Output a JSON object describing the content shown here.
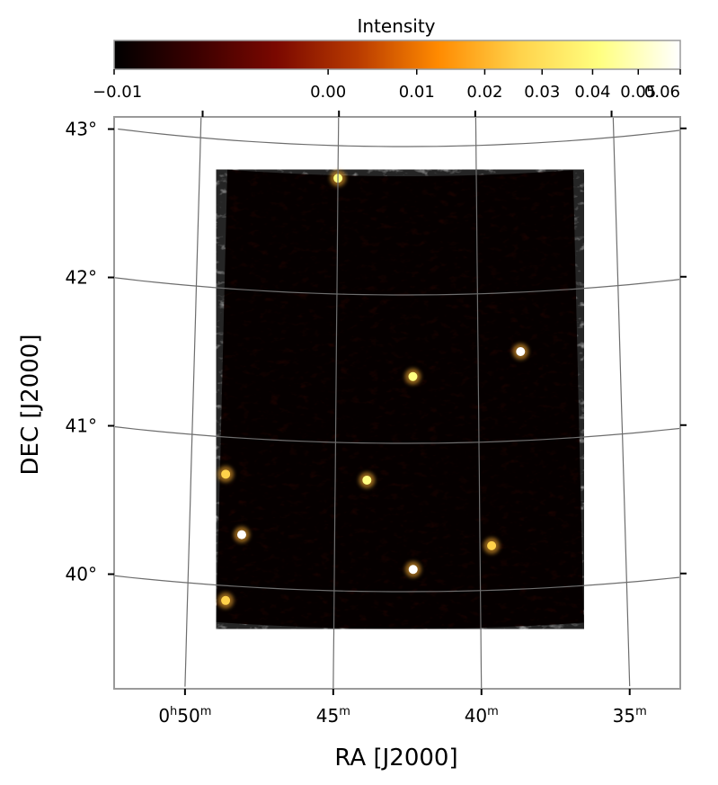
{
  "chart_data": {
    "type": "heatmap",
    "title": "",
    "xlabel": "RA [J2000]",
    "ylabel": "DEC [J2000]",
    "colorbar": {
      "label": "Intensity",
      "scale": "nonlinear (stretched)",
      "range": [
        -0.01,
        0.06
      ],
      "ticks": [
        {
          "value": -0.01,
          "label": "−0.01"
        },
        {
          "value": 0.0,
          "label": "0.00"
        },
        {
          "value": 0.01,
          "label": "0.01"
        },
        {
          "value": 0.02,
          "label": "0.02"
        },
        {
          "value": 0.03,
          "label": "0.03"
        },
        {
          "value": 0.04,
          "label": "0.04"
        },
        {
          "value": 0.05,
          "label": "0.05"
        },
        {
          "value": 0.06,
          "label": "0.06"
        }
      ],
      "colormap": [
        "#000000",
        "#3a0000",
        "#7a0800",
        "#b83a00",
        "#ff8a00",
        "#ffd24a",
        "#ffff80",
        "#ffffff"
      ]
    },
    "x_ticks": [
      {
        "label": "0h50m",
        "hours": 0,
        "minutes": 50
      },
      {
        "label": "45m",
        "minutes": 45
      },
      {
        "label": "40m",
        "minutes": 40
      },
      {
        "label": "35m",
        "minutes": 35
      }
    ],
    "y_ticks": [
      {
        "label": "43°",
        "deg": 43
      },
      {
        "label": "42°",
        "deg": 42
      },
      {
        "label": "41°",
        "deg": 41
      },
      {
        "label": "40°",
        "deg": 40
      }
    ],
    "grid": true,
    "grid_color": "#6e6e6e",
    "map_extent": {
      "ra_min": 36.5,
      "ra_max": 49.0,
      "dec_min": 39.75,
      "dec_max": 42.8
    },
    "bright_sources": [
      {
        "ra": 38.5,
        "dec": 41.6,
        "intensity": 0.06
      },
      {
        "ra": 42.3,
        "dec": 41.45,
        "intensity": 0.04
      },
      {
        "ra": 43.9,
        "dec": 40.75,
        "intensity": 0.035
      },
      {
        "ra": 48.2,
        "dec": 40.35,
        "intensity": 0.06
      },
      {
        "ra": 42.3,
        "dec": 40.15,
        "intensity": 0.06
      },
      {
        "ra": 48.8,
        "dec": 40.75,
        "intensity": 0.03
      },
      {
        "ra": 45.0,
        "dec": 42.78,
        "intensity": 0.045
      },
      {
        "ra": 48.7,
        "dec": 39.9,
        "intensity": 0.03
      },
      {
        "ra": 39.6,
        "dec": 40.3,
        "intensity": 0.025
      }
    ]
  }
}
